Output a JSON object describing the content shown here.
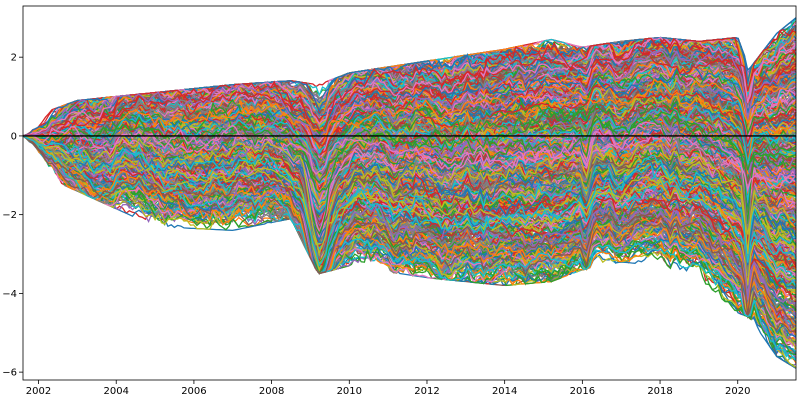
{
  "chart_data": {
    "type": "line",
    "title": "",
    "xlabel": "",
    "ylabel": "",
    "xlim": [
      2001.6,
      2021.5
    ],
    "ylim": [
      -6.2,
      3.3
    ],
    "x_ticks": [
      2002,
      2004,
      2006,
      2008,
      2010,
      2012,
      2014,
      2016,
      2018,
      2020
    ],
    "y_ticks": [
      2,
      0,
      -2,
      -4,
      -6
    ],
    "y_tick_labels": [
      "2",
      "0",
      "−2",
      "−4",
      "−6"
    ],
    "x_tick_labels": [
      "2002",
      "2004",
      "2006",
      "2008",
      "2010",
      "2012",
      "2014",
      "2016",
      "2018",
      "2020"
    ],
    "grid": false,
    "legend": "none",
    "series_count": 900,
    "series_colors": [
      "#1f77b4",
      "#ff7f0e",
      "#2ca02c",
      "#d62728",
      "#9467bd",
      "#8c564b",
      "#e377c2",
      "#7f7f7f",
      "#bcbd22",
      "#17becf"
    ],
    "zero_line": {
      "y": 0,
      "color": "#000000"
    },
    "envelope": {
      "x": [
        2001.6,
        2003,
        2005,
        2007,
        2008.5,
        2009.2,
        2010,
        2012,
        2014,
        2015.2,
        2016,
        2017,
        2018,
        2019,
        2020,
        2020.3,
        2021,
        2021.5
      ],
      "upper": [
        0.3,
        0.8,
        1.0,
        1.2,
        1.3,
        1.2,
        1.5,
        1.8,
        2.1,
        2.35,
        2.15,
        2.3,
        2.4,
        2.3,
        2.4,
        1.6,
        2.5,
        2.9
      ],
      "lower": [
        -0.7,
        -1.3,
        -2.2,
        -2.3,
        -2.0,
        -3.4,
        -3.2,
        -3.5,
        -3.7,
        -3.6,
        -3.3,
        -3.1,
        -3.2,
        -3.5,
        -4.4,
        -4.5,
        -5.5,
        -5.8
      ]
    }
  }
}
